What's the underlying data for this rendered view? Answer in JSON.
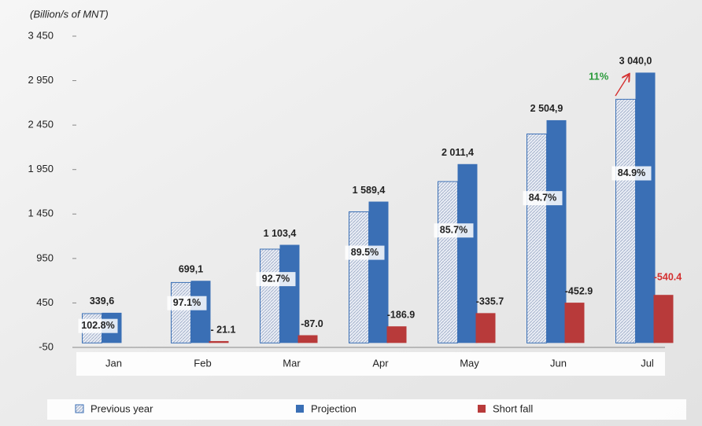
{
  "chart_data": {
    "type": "bar",
    "subtitle": "(Billion/s of MNT)",
    "categories": [
      "Jan",
      "Feb",
      "Mar",
      "Apr",
      "May",
      "Jun",
      "Jul"
    ],
    "series": [
      {
        "name": "Previous year",
        "color": "#c9d3e6",
        "values": [
          330,
          680,
          1055,
          1475,
          1815,
          2350,
          2740
        ]
      },
      {
        "name": "Projection",
        "color": "#3a6fb5",
        "values": [
          339.6,
          699.1,
          1103.4,
          1589.4,
          2011.4,
          2504.9,
          3040.0
        ],
        "value_labels": [
          "339,6",
          "699,1",
          "1 103,4",
          "1 589,4",
          "2 011,4",
          "2 504,9",
          "3 040,0"
        ]
      },
      {
        "name": "Short fall",
        "color": "#b83a3a",
        "values": [
          null,
          -21.1,
          -87.0,
          -186.9,
          -335.7,
          -452.9,
          -540.4
        ],
        "value_labels": [
          null,
          "- 21.1",
          "-87.0",
          "-186.9",
          "-335.7",
          "-452.9",
          "-540.4"
        ]
      }
    ],
    "rate_labels": [
      "102.8%",
      "97.1%",
      "92.7%",
      "89.5%",
      "85.7%",
      "84.7%",
      "84.9%"
    ],
    "annotation": "11%",
    "ylim": [
      -50,
      3450
    ],
    "yticks": [
      -50,
      450,
      950,
      {
        "value": 1450,
        "label": "1 450"
      },
      {
        "value": 1950,
        "label": "1 950"
      },
      {
        "value": 2450,
        "label": "2 450"
      },
      {
        "value": 2950,
        "label": "2 950"
      },
      {
        "value": 3450,
        "label": "3 450"
      }
    ],
    "grid": false,
    "legend": "bottom"
  }
}
